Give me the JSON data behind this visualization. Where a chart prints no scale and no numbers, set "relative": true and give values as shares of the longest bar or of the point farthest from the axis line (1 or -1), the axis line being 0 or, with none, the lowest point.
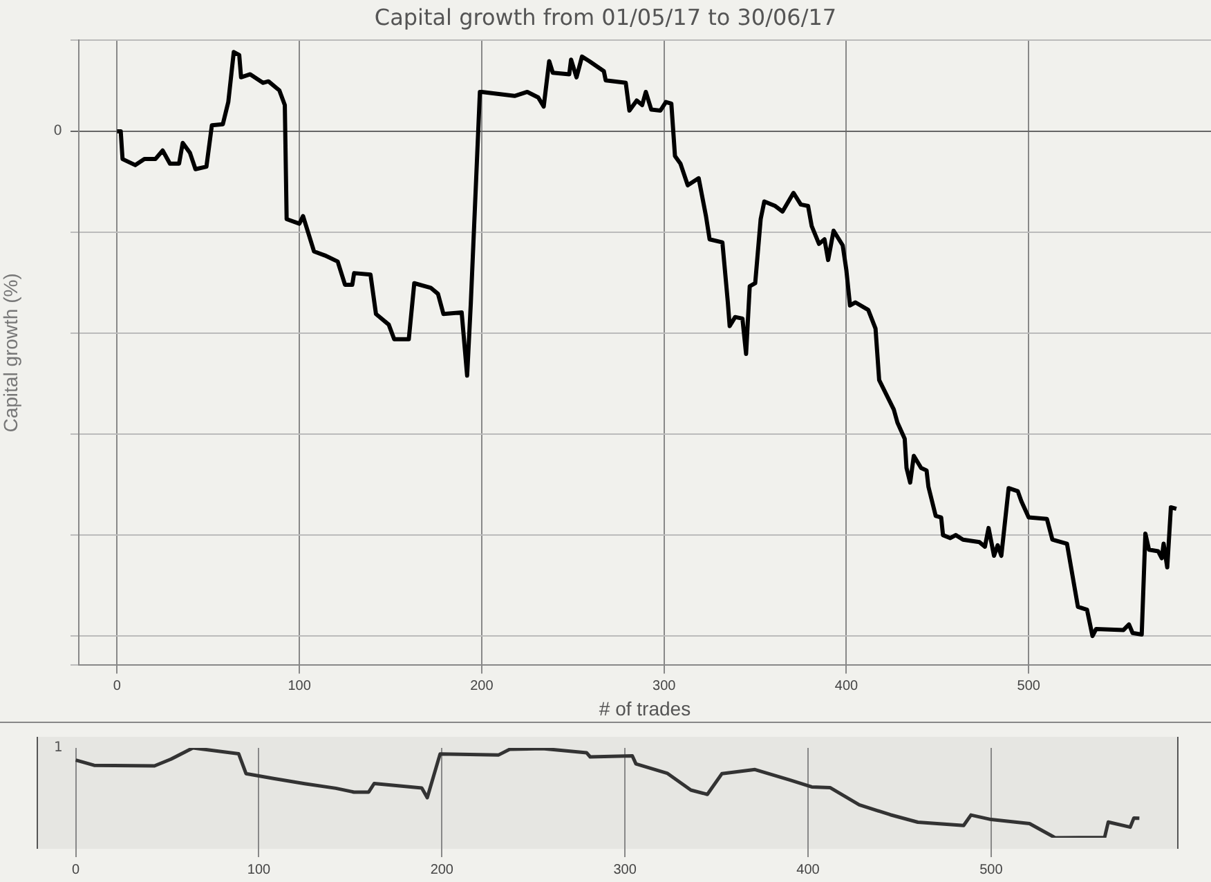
{
  "chart_data": [
    {
      "type": "line",
      "title": "Capital growth from 01/05/17 to 30/06/17",
      "xlabel": "# of trades",
      "ylabel": "Capital growth (%)",
      "relative": true,
      "xlim": [
        -21,
        600
      ],
      "xticks": [
        0,
        100,
        200,
        300,
        400,
        500
      ],
      "annotations": [
        "0"
      ],
      "grid": true,
      "legend": false,
      "marker": "none",
      "line_style": "solid",
      "series": [
        {
          "color": "#000000",
          "x": [
            0,
            2,
            3,
            10,
            15,
            21,
            25,
            29,
            34,
            36,
            40,
            43,
            49,
            52,
            58,
            61,
            64,
            67,
            68,
            73,
            80,
            83,
            89,
            92,
            93,
            100,
            102,
            108,
            114,
            121,
            125,
            129,
            130,
            139,
            142,
            149,
            152,
            160,
            163,
            172,
            176,
            179,
            189,
            192,
            194,
            199,
            200,
            218,
            225,
            231,
            234,
            237,
            239,
            248,
            249,
            252,
            255,
            259,
            267,
            268,
            279,
            281,
            285,
            288,
            290,
            293,
            298,
            301,
            304,
            306,
            309,
            313,
            319,
            323,
            325,
            332,
            335,
            336,
            339,
            343,
            345,
            347,
            350,
            353,
            355,
            361,
            365,
            371,
            375,
            379,
            381,
            385,
            388,
            390,
            393,
            398,
            400,
            402,
            405,
            412,
            416,
            418,
            426,
            428,
            432,
            433,
            435,
            437,
            441,
            444,
            445,
            449,
            452,
            453,
            457,
            460,
            464,
            473,
            476,
            478,
            481,
            483,
            485,
            489,
            494,
            496,
            500,
            510,
            513,
            521,
            527,
            532,
            535,
            537,
            552,
            555,
            557,
            562,
            564,
            566,
            571,
            573,
            574,
            576,
            578,
            581
          ],
          "values": [
            0,
            0,
            -0.055,
            -0.067,
            -0.055,
            -0.055,
            -0.038,
            -0.064,
            -0.064,
            -0.023,
            -0.043,
            -0.075,
            -0.07,
            0.012,
            0.014,
            0.058,
            0.157,
            0.151,
            0.107,
            0.113,
            0.096,
            0.099,
            0.081,
            0.052,
            -0.174,
            -0.183,
            -0.168,
            -0.238,
            -0.246,
            -0.258,
            -0.304,
            -0.304,
            -0.281,
            -0.284,
            -0.362,
            -0.383,
            -0.412,
            -0.412,
            -0.301,
            -0.31,
            -0.322,
            -0.362,
            -0.359,
            -0.484,
            -0.342,
            0.078,
            0.078,
            0.07,
            0.078,
            0.067,
            0.049,
            0.139,
            0.116,
            0.113,
            0.142,
            0.107,
            0.148,
            0.139,
            0.119,
            0.101,
            0.096,
            0.041,
            0.061,
            0.052,
            0.078,
            0.043,
            0.041,
            0.058,
            0.055,
            -0.049,
            -0.064,
            -0.107,
            -0.093,
            -0.168,
            -0.214,
            -0.22,
            -0.339,
            -0.386,
            -0.368,
            -0.371,
            -0.441,
            -0.307,
            -0.301,
            -0.174,
            -0.139,
            -0.148,
            -0.159,
            -0.122,
            -0.145,
            -0.148,
            -0.188,
            -0.223,
            -0.214,
            -0.255,
            -0.197,
            -0.226,
            -0.275,
            -0.345,
            -0.339,
            -0.354,
            -0.391,
            -0.493,
            -0.551,
            -0.577,
            -0.609,
            -0.667,
            -0.696,
            -0.643,
            -0.667,
            -0.672,
            -0.704,
            -0.762,
            -0.765,
            -0.8,
            -0.806,
            -0.8,
            -0.809,
            -0.814,
            -0.823,
            -0.786,
            -0.841,
            -0.82,
            -0.841,
            -0.707,
            -0.713,
            -0.733,
            -0.765,
            -0.768,
            -0.809,
            -0.817,
            -0.942,
            -0.948,
            -1,
            -0.986,
            -0.988,
            -0.977,
            -0.994,
            -0.997,
            -0.797,
            -0.829,
            -0.832,
            -0.846,
            -0.817,
            -0.864,
            -0.745,
            -0.748
          ]
        }
      ]
    },
    {
      "type": "line",
      "relative": true,
      "xlim": [
        -21,
        602
      ],
      "xticks": [
        0,
        100,
        200,
        300,
        400,
        500
      ],
      "annotations": [
        "1"
      ],
      "grid": "x",
      "legend": false,
      "marker": "none",
      "line_style": "solid",
      "series": [
        {
          "color": "#333333",
          "x": [
            0,
            10,
            43,
            52,
            64,
            89,
            93,
            108,
            125,
            142,
            152,
            160,
            163,
            189,
            192,
            199,
            231,
            237,
            255,
            279,
            281,
            304,
            306,
            323,
            336,
            345,
            353,
            371,
            390,
            402,
            412,
            428,
            445,
            460,
            485,
            489,
            500,
            521,
            535,
            562,
            564,
            576,
            578,
            581
          ],
          "values": [
            0.864,
            0.806,
            0.8,
            0.875,
            1,
            0.934,
            0.714,
            0.659,
            0.602,
            0.551,
            0.508,
            0.508,
            0.604,
            0.554,
            0.446,
            0.932,
            0.922,
            0.984,
            0.992,
            0.947,
            0.9,
            0.912,
            0.822,
            0.719,
            0.531,
            0.483,
            0.714,
            0.759,
            0.644,
            0.566,
            0.558,
            0.366,
            0.256,
            0.173,
            0.137,
            0.253,
            0.203,
            0.158,
            0,
            0.003,
            0.175,
            0.118,
            0.22,
            0.218
          ]
        }
      ]
    }
  ]
}
